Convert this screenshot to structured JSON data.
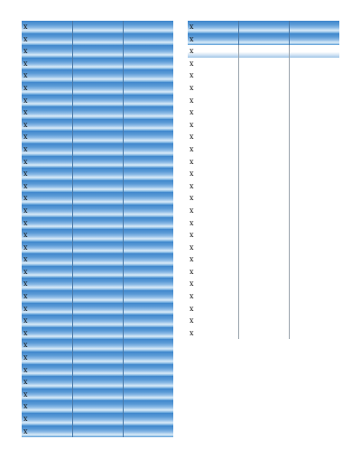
{
  "left_grid": {
    "cell_text": "x",
    "rows": 34,
    "columns": 3
  },
  "right_grid": {
    "cell_text": "x",
    "rows": 26,
    "columns": 3,
    "blue_rows": 2,
    "tint_rows": 1
  },
  "colors": {
    "row_blue_top": "#3f86cc",
    "row_blue_mid": "#8dbbe6",
    "row_blue_light": "#d9ebf8",
    "divider": "#9aa4ad"
  }
}
